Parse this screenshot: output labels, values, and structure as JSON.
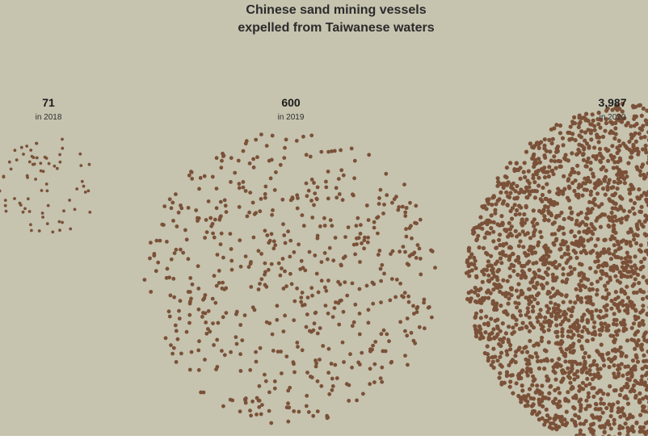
{
  "title_line_1": "Chinese sand mining vessels",
  "title_line_2": "expelled from Taiwanese waters",
  "dot_color": "#7a5138",
  "background_color": "#c6c3af",
  "chart_data": {
    "type": "scatter",
    "title": "Chinese sand mining vessels expelled from Taiwanese waters",
    "series": [
      {
        "year_label": "in 2018",
        "count_label": "71",
        "value": 71
      },
      {
        "year_label": "in 2019",
        "count_label": "600",
        "value": 600
      },
      {
        "year_label": "in 2020",
        "count_label": "3,987",
        "value": 3987
      }
    ]
  }
}
